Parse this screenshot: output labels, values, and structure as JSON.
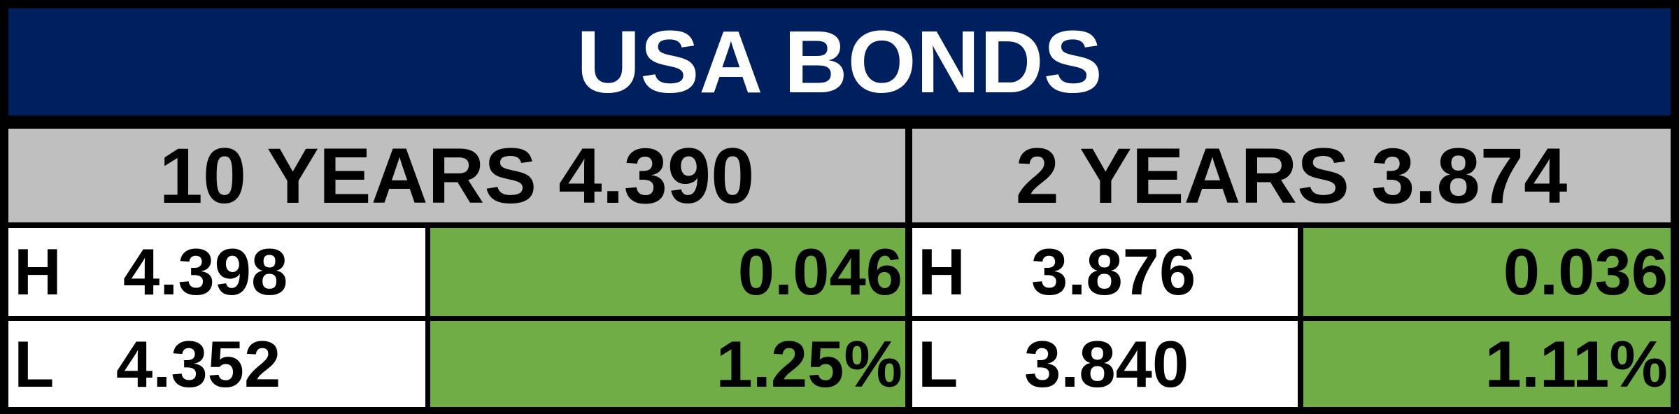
{
  "header": {
    "title": "USA BONDS"
  },
  "panels": [
    {
      "heading": "10 YEARS 4.390",
      "rows": [
        {
          "label": "H",
          "value": "4.398",
          "change": "0.046"
        },
        {
          "label": "L",
          "value": "4.352",
          "change": "1.25%"
        }
      ]
    },
    {
      "heading": "2 YEARS 3.874",
      "rows": [
        {
          "label": "H",
          "value": "3.876",
          "change": "0.036"
        },
        {
          "label": "L",
          "value": "3.840",
          "change": "1.11%"
        }
      ]
    }
  ]
}
